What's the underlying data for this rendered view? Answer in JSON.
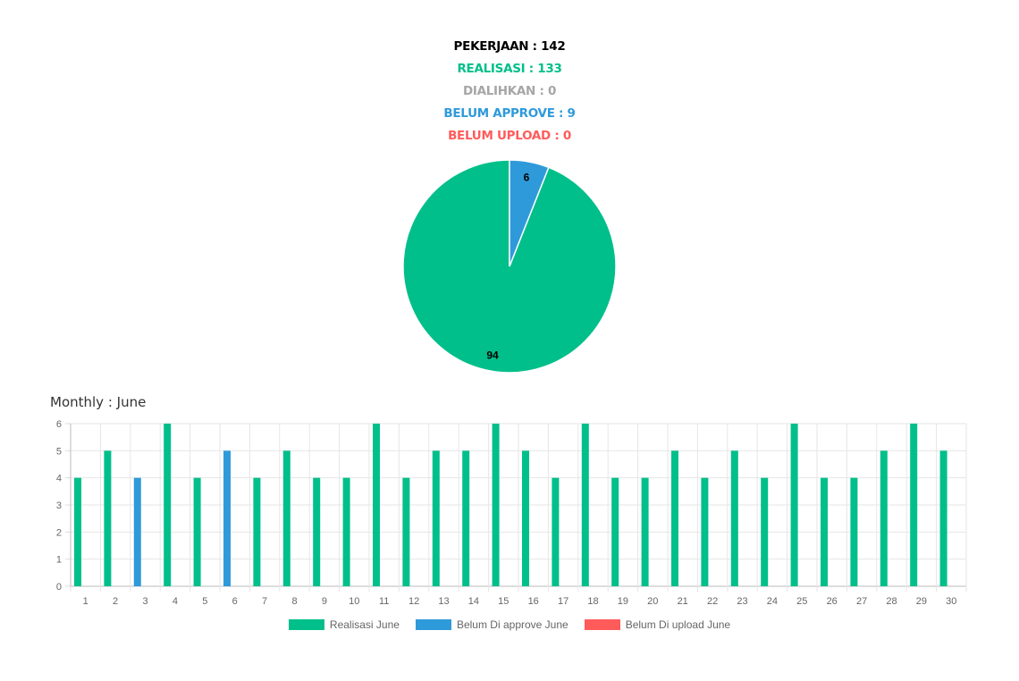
{
  "summary": {
    "pekerjaan": "PEKERJAAN : 142",
    "realisasi": "REALISASI : 133",
    "dialihkan": "DIALIHKAN : 0",
    "belum_approve": "BELUM APPROVE : 9",
    "belum_upload": "BELUM UPLOAD : 0"
  },
  "colors": {
    "pekerjaan": "#000000",
    "realisasi": "#00bf8a",
    "dialihkan": "#a6a6a6",
    "belum_approve": "#2f9ada",
    "belum_upload": "#ff5b5b"
  },
  "chart_data": [
    {
      "type": "pie",
      "slices": [
        {
          "name": "Realisasi",
          "value": 94,
          "label": "94",
          "color": "#00bf8a"
        },
        {
          "name": "Belum Approve",
          "value": 6,
          "label": "6",
          "color": "#2f9ada"
        }
      ]
    },
    {
      "type": "bar",
      "title": "Monthly : June",
      "categories": [
        "1",
        "2",
        "3",
        "4",
        "5",
        "6",
        "7",
        "8",
        "9",
        "10",
        "11",
        "12",
        "13",
        "14",
        "15",
        "16",
        "17",
        "18",
        "19",
        "20",
        "21",
        "22",
        "23",
        "24",
        "25",
        "26",
        "27",
        "28",
        "29",
        "30"
      ],
      "ylim": [
        0,
        6
      ],
      "yticks": [
        "0",
        "1",
        "2",
        "3",
        "4",
        "5",
        "6"
      ],
      "grid": true,
      "legend": "bottom",
      "series": [
        {
          "name": "Realisasi June",
          "color": "#00bf8a",
          "values": [
            4,
            5,
            0,
            6,
            4,
            0,
            4,
            5,
            4,
            4,
            6,
            4,
            5,
            5,
            6,
            5,
            4,
            6,
            4,
            4,
            5,
            4,
            5,
            4,
            6,
            4,
            4,
            5,
            6,
            5
          ]
        },
        {
          "name": "Belum Di approve June",
          "color": "#2f9ada",
          "values": [
            0,
            0,
            4,
            0,
            0,
            5,
            0,
            0,
            0,
            0,
            0,
            0,
            0,
            0,
            0,
            0,
            0,
            0,
            0,
            0,
            0,
            0,
            0,
            0,
            0,
            0,
            0,
            0,
            0,
            0
          ]
        },
        {
          "name": "Belum Di upload June",
          "color": "#ff5b5b",
          "values": [
            0,
            0,
            0,
            0,
            0,
            0,
            0,
            0,
            0,
            0,
            0,
            0,
            0,
            0,
            0,
            0,
            0,
            0,
            0,
            0,
            0,
            0,
            0,
            0,
            0,
            0,
            0,
            0,
            0,
            0
          ]
        }
      ]
    }
  ]
}
